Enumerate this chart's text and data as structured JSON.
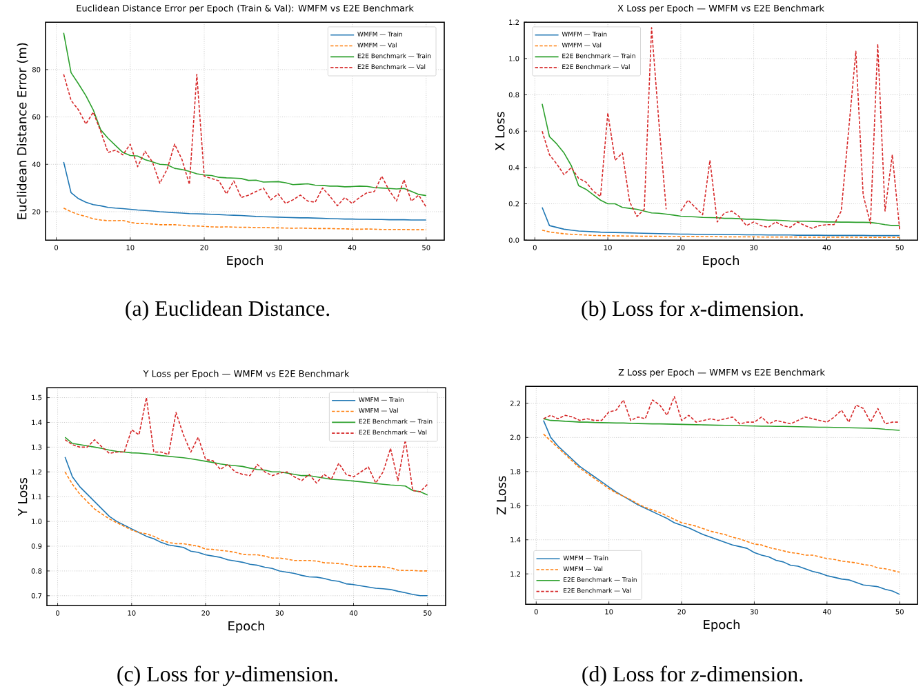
{
  "chart_data": [
    {
      "type": "line",
      "title": "Euclidean Distance Error per Epoch (Train & Val): WMFM vs E2E Benchmark",
      "xlabel": "Epoch",
      "ylabel": "Euclidean Distance Error (m)",
      "annotations": [
        "(a) Euclidean Distance."
      ],
      "xlim": [
        -1.45,
        52.45
      ],
      "ylim": [
        8,
        100
      ],
      "xticks": [
        0,
        10,
        20,
        30,
        40,
        50
      ],
      "yticks": [
        20,
        40,
        60,
        80
      ],
      "grid": true,
      "legend": "top right",
      "marker": "none",
      "x": [
        1,
        2,
        3,
        4,
        5,
        6,
        7,
        8,
        9,
        10,
        11,
        12,
        13,
        14,
        15,
        16,
        17,
        18,
        19,
        20,
        21,
        22,
        23,
        24,
        25,
        26,
        27,
        28,
        29,
        30,
        31,
        32,
        33,
        34,
        35,
        36,
        37,
        38,
        39,
        40,
        41,
        42,
        43,
        44,
        45,
        46,
        47,
        48,
        49,
        50
      ],
      "series": [
        {
          "name": "WMFM — Train",
          "color": "#1f77b4",
          "line_style": "solid",
          "values": [
            41,
            28,
            25.5,
            24,
            23,
            22.5,
            21.8,
            21.5,
            21.3,
            21,
            20.7,
            20.5,
            20.3,
            20,
            19.8,
            19.6,
            19.4,
            19.2,
            19.1,
            19,
            18.9,
            18.8,
            18.6,
            18.5,
            18.4,
            18.2,
            18,
            17.9,
            17.8,
            17.7,
            17.6,
            17.5,
            17.4,
            17.4,
            17.3,
            17.2,
            17.1,
            17,
            16.9,
            16.9,
            16.8,
            16.8,
            16.7,
            16.7,
            16.6,
            16.6,
            16.6,
            16.5,
            16.5,
            16.5
          ]
        },
        {
          "name": "WMFM — Val",
          "color": "#ff7f0e",
          "line_style": "dashed",
          "values": [
            21.5,
            20,
            18.8,
            18,
            17,
            16.5,
            16.2,
            16.2,
            16.3,
            15.5,
            15,
            15,
            14.8,
            14.5,
            14.5,
            14.5,
            14.3,
            14,
            14,
            13.8,
            13.6,
            13.5,
            13.6,
            13.5,
            13.4,
            13.4,
            13.3,
            13.3,
            13.2,
            13.2,
            13.1,
            13,
            13.1,
            13,
            12.9,
            12.9,
            12.9,
            12.8,
            12.8,
            12.6,
            12.6,
            12.7,
            12.6,
            12.5,
            12.5,
            12.5,
            12.5,
            12.4,
            12.4,
            12.4
          ]
        },
        {
          "name": "E2E Benchmark — Train",
          "color": "#2ca02c",
          "line_style": "solid",
          "values": [
            95.5,
            78.7,
            74,
            69,
            63,
            54.6,
            51,
            48,
            45,
            43.7,
            43.5,
            42,
            41,
            40,
            39.8,
            38.3,
            37.8,
            37,
            36,
            35.5,
            35.3,
            34.5,
            34.3,
            34.2,
            34,
            33.2,
            33.3,
            32.5,
            32.6,
            32.7,
            32.2,
            31.4,
            31.6,
            31.8,
            31.2,
            31.1,
            30.8,
            30.8,
            30.5,
            30.6,
            30.8,
            30.7,
            30.2,
            30,
            29.8,
            29.6,
            29.8,
            28.6,
            27.3,
            26.8
          ]
        },
        {
          "name": "E2E Benchmark — Val",
          "color": "#d62728",
          "line_style": "dashed",
          "values": [
            78,
            67,
            63,
            57,
            62,
            54,
            45,
            46,
            44,
            48.5,
            39,
            45.5,
            41,
            32,
            38,
            48.5,
            42,
            31.5,
            78,
            35,
            34,
            33,
            27.5,
            33,
            26,
            27,
            28.5,
            30,
            25,
            27.5,
            23.5,
            25,
            27,
            24.5,
            24,
            30,
            26.5,
            22.5,
            26,
            23.5,
            26,
            28,
            28.5,
            35,
            29,
            24.5,
            33.5,
            24.5,
            27,
            22
          ]
        }
      ]
    },
    {
      "type": "line",
      "title": "X Loss per Epoch — WMFM vs E2E Benchmark",
      "xlabel": "Epoch",
      "ylabel": "X Loss",
      "annotations": [
        "(b) Loss for *x*-dimension."
      ],
      "xlim": [
        -1.45,
        52.45
      ],
      "ylim": [
        0,
        1.2
      ],
      "xticks": [
        0,
        10,
        20,
        30,
        40,
        50
      ],
      "yticks": [
        {
          "value": 0,
          "label": "0.0"
        },
        0.2,
        0.4,
        0.6,
        0.8,
        {
          "value": 1,
          "label": "1.0"
        },
        1.2
      ],
      "grid": true,
      "legend": "top left",
      "marker": "none",
      "x": [
        1,
        2,
        3,
        4,
        5,
        6,
        7,
        8,
        9,
        10,
        11,
        12,
        13,
        14,
        15,
        16,
        17,
        18,
        19,
        20,
        21,
        22,
        23,
        24,
        25,
        26,
        27,
        28,
        29,
        30,
        31,
        32,
        33,
        34,
        35,
        36,
        37,
        38,
        39,
        40,
        41,
        42,
        43,
        44,
        45,
        46,
        47,
        48,
        49,
        50
      ],
      "series": [
        {
          "name": "WMFM — Train",
          "color": "#1f77b4",
          "line_style": "solid",
          "values": [
            0.18,
            0.08,
            0.07,
            0.06,
            0.055,
            0.05,
            0.048,
            0.046,
            0.044,
            0.043,
            0.042,
            0.041,
            0.04,
            0.039,
            0.038,
            0.037,
            0.036,
            0.035,
            0.034,
            0.033,
            0.033,
            0.032,
            0.032,
            0.031,
            0.031,
            0.03,
            0.03,
            0.03,
            0.029,
            0.029,
            0.029,
            0.028,
            0.028,
            0.028,
            0.028,
            0.027,
            0.027,
            0.027,
            0.027,
            0.026,
            0.026,
            0.026,
            0.026,
            0.026,
            0.026,
            0.025,
            0.025,
            0.025,
            0.025,
            0.025
          ]
        },
        {
          "name": "WMFM — Val",
          "color": "#ff7f0e",
          "line_style": "dashed",
          "values": [
            0.055,
            0.045,
            0.04,
            0.035,
            0.032,
            0.03,
            0.028,
            0.026,
            0.025,
            0.024,
            0.023,
            0.023,
            0.022,
            0.022,
            0.021,
            0.021,
            0.021,
            0.02,
            0.02,
            0.02,
            0.02,
            0.019,
            0.019,
            0.019,
            0.019,
            0.018,
            0.018,
            0.018,
            0.018,
            0.018,
            0.017,
            0.017,
            0.017,
            0.017,
            0.017,
            0.017,
            0.016,
            0.016,
            0.016,
            0.016,
            0.016,
            0.016,
            0.016,
            0.016,
            0.015,
            0.015,
            0.015,
            0.015,
            0.015,
            0.015
          ]
        },
        {
          "name": "E2E Benchmark — Train",
          "color": "#2ca02c",
          "line_style": "solid",
          "values": [
            0.75,
            0.57,
            0.53,
            0.48,
            0.41,
            0.3,
            0.28,
            0.25,
            0.22,
            0.2,
            0.2,
            0.18,
            0.175,
            0.17,
            0.16,
            0.15,
            0.148,
            0.143,
            0.138,
            0.132,
            0.13,
            0.128,
            0.125,
            0.124,
            0.123,
            0.12,
            0.12,
            0.118,
            0.115,
            0.115,
            0.113,
            0.11,
            0.11,
            0.108,
            0.105,
            0.104,
            0.104,
            0.103,
            0.102,
            0.1,
            0.1,
            0.099,
            0.099,
            0.098,
            0.098,
            0.097,
            0.092,
            0.085,
            0.08,
            0.08
          ]
        },
        {
          "name": "E2E Benchmark — Val",
          "color": "#d62728",
          "line_style": "dashed",
          "values": [
            0.6,
            0.47,
            0.42,
            0.36,
            0.4,
            0.34,
            0.32,
            0.27,
            0.24,
            0.7,
            0.44,
            0.48,
            0.21,
            0.13,
            0.17,
            1.17,
            0.65,
            0.17,
            null,
            0.16,
            0.22,
            0.18,
            0.14,
            0.44,
            0.1,
            0.15,
            0.16,
            0.13,
            0.08,
            0.1,
            0.08,
            0.07,
            0.1,
            0.08,
            0.07,
            0.1,
            0.08,
            0.065,
            0.08,
            0.085,
            0.085,
            0.16,
            0.6,
            1.04,
            0.25,
            0.09,
            1.08,
            0.16,
            0.47,
            0.06
          ]
        }
      ]
    },
    {
      "type": "line",
      "title": "Y Loss per Epoch — WMFM vs E2E Benchmark",
      "xlabel": "Epoch",
      "ylabel": "Y Loss",
      "annotations": [
        "(c) Loss for *y*-dimension."
      ],
      "xlim": [
        -1.45,
        52.45
      ],
      "ylim": [
        0.66,
        1.54
      ],
      "xticks": [
        0,
        10,
        20,
        30,
        40,
        50
      ],
      "yticks": [
        0.7,
        0.8,
        0.9,
        {
          "value": 1,
          "label": "1.0"
        },
        1.1,
        1.2,
        1.3,
        1.4,
        1.5
      ],
      "grid": true,
      "legend": "top right",
      "marker": "none",
      "x": [
        1,
        2,
        3,
        4,
        5,
        6,
        7,
        8,
        9,
        10,
        11,
        12,
        13,
        14,
        15,
        16,
        17,
        18,
        19,
        20,
        21,
        22,
        23,
        24,
        25,
        26,
        27,
        28,
        29,
        30,
        31,
        32,
        33,
        34,
        35,
        36,
        37,
        38,
        39,
        40,
        41,
        42,
        43,
        44,
        45,
        46,
        47,
        48,
        49,
        50
      ],
      "series": [
        {
          "name": "WMFM — Train",
          "color": "#1f77b4",
          "line_style": "solid",
          "values": [
            1.26,
            1.18,
            1.14,
            1.11,
            1.08,
            1.05,
            1.02,
            1.0,
            0.985,
            0.97,
            0.955,
            0.94,
            0.93,
            0.915,
            0.905,
            0.9,
            0.895,
            0.88,
            0.875,
            0.865,
            0.86,
            0.855,
            0.845,
            0.84,
            0.835,
            0.827,
            0.823,
            0.815,
            0.81,
            0.8,
            0.795,
            0.79,
            0.782,
            0.776,
            0.775,
            0.77,
            0.762,
            0.758,
            0.748,
            0.745,
            0.74,
            0.735,
            0.73,
            0.728,
            0.725,
            0.718,
            0.712,
            0.705,
            0.7,
            0.7
          ]
        },
        {
          "name": "WMFM — Val",
          "color": "#ff7f0e",
          "line_style": "dashed",
          "values": [
            1.2,
            1.15,
            1.11,
            1.08,
            1.05,
            1.03,
            1.01,
            0.995,
            0.98,
            0.965,
            0.955,
            0.95,
            0.94,
            0.925,
            0.915,
            0.91,
            0.91,
            0.905,
            0.9,
            0.888,
            0.887,
            0.883,
            0.88,
            0.875,
            0.867,
            0.865,
            0.865,
            0.86,
            0.852,
            0.852,
            0.848,
            0.842,
            0.842,
            0.842,
            0.84,
            0.833,
            0.832,
            0.83,
            0.826,
            0.82,
            0.818,
            0.818,
            0.818,
            0.816,
            0.812,
            0.803,
            0.802,
            0.802,
            0.8,
            0.8
          ]
        },
        {
          "name": "E2E Benchmark — Train",
          "color": "#2ca02c",
          "line_style": "solid",
          "values": [
            1.34,
            1.315,
            1.31,
            1.305,
            1.3,
            1.295,
            1.288,
            1.283,
            1.28,
            1.277,
            1.276,
            1.273,
            1.27,
            1.266,
            1.263,
            1.26,
            1.257,
            1.253,
            1.248,
            1.243,
            1.238,
            1.232,
            1.228,
            1.225,
            1.222,
            1.215,
            1.21,
            1.207,
            1.2,
            1.2,
            1.195,
            1.19,
            1.185,
            1.185,
            1.18,
            1.175,
            1.17,
            1.168,
            1.166,
            1.163,
            1.16,
            1.157,
            1.153,
            1.15,
            1.147,
            1.145,
            1.143,
            1.125,
            1.12,
            1.107
          ]
        },
        {
          "name": "E2E Benchmark — Val",
          "color": "#d62728",
          "line_style": "dashed",
          "values": [
            1.33,
            1.31,
            1.3,
            1.3,
            1.33,
            1.3,
            1.275,
            1.28,
            1.28,
            1.37,
            1.35,
            1.5,
            1.28,
            1.28,
            1.27,
            1.44,
            1.35,
            1.28,
            1.34,
            1.25,
            1.245,
            1.21,
            1.23,
            1.2,
            1.19,
            1.185,
            1.23,
            1.2,
            1.185,
            1.195,
            1.2,
            1.18,
            1.165,
            1.19,
            1.155,
            1.19,
            1.17,
            1.235,
            1.19,
            1.18,
            1.2,
            1.22,
            1.155,
            1.2,
            1.295,
            1.165,
            1.33,
            1.125,
            1.12,
            1.15
          ]
        }
      ]
    },
    {
      "type": "line",
      "title": "Z Loss per Epoch — WMFM vs E2E Benchmark",
      "xlabel": "Epoch",
      "ylabel": "Z Loss",
      "annotations": [
        "(d) Loss for *z*-dimension."
      ],
      "xlim": [
        -1.45,
        52.45
      ],
      "ylim": [
        1.022,
        2.3
      ],
      "xticks": [
        0,
        10,
        20,
        30,
        40,
        50
      ],
      "yticks": [
        1.2,
        1.4,
        1.6,
        1.8,
        {
          "value": 2,
          "label": "2.0"
        },
        2.2
      ],
      "grid": true,
      "legend": "bottom left",
      "marker": "none",
      "x": [
        1,
        2,
        3,
        4,
        5,
        6,
        7,
        8,
        9,
        10,
        11,
        12,
        13,
        14,
        15,
        16,
        17,
        18,
        19,
        20,
        21,
        22,
        23,
        24,
        25,
        26,
        27,
        28,
        29,
        30,
        31,
        32,
        33,
        34,
        35,
        36,
        37,
        38,
        39,
        40,
        41,
        42,
        43,
        44,
        45,
        46,
        47,
        48,
        49,
        50
      ],
      "series": [
        {
          "name": "WMFM — Train",
          "color": "#1f77b4",
          "line_style": "solid",
          "values": [
            2.1,
            2.0,
            1.95,
            1.91,
            1.87,
            1.83,
            1.8,
            1.77,
            1.74,
            1.71,
            1.68,
            1.655,
            1.63,
            1.605,
            1.585,
            1.565,
            1.545,
            1.525,
            1.5,
            1.485,
            1.47,
            1.45,
            1.43,
            1.415,
            1.4,
            1.385,
            1.37,
            1.36,
            1.35,
            1.325,
            1.31,
            1.3,
            1.28,
            1.27,
            1.25,
            1.245,
            1.23,
            1.215,
            1.205,
            1.19,
            1.18,
            1.17,
            1.165,
            1.15,
            1.135,
            1.13,
            1.125,
            1.11,
            1.1,
            1.08
          ]
        },
        {
          "name": "WMFM — Val",
          "color": "#ff7f0e",
          "line_style": "dashed",
          "values": [
            2.02,
            1.98,
            1.94,
            1.9,
            1.86,
            1.82,
            1.79,
            1.76,
            1.73,
            1.7,
            1.675,
            1.655,
            1.635,
            1.61,
            1.59,
            1.575,
            1.56,
            1.54,
            1.52,
            1.5,
            1.49,
            1.48,
            1.465,
            1.45,
            1.44,
            1.43,
            1.415,
            1.405,
            1.39,
            1.375,
            1.37,
            1.355,
            1.345,
            1.335,
            1.325,
            1.32,
            1.31,
            1.31,
            1.3,
            1.29,
            1.285,
            1.275,
            1.27,
            1.265,
            1.255,
            1.25,
            1.235,
            1.23,
            1.22,
            1.21
          ]
        },
        {
          "name": "E2E Benchmark — Train",
          "color": "#2ca02c",
          "line_style": "solid",
          "values": [
            2.11,
            2.1,
            2.098,
            2.095,
            2.093,
            2.09,
            2.09,
            2.088,
            2.087,
            2.086,
            2.085,
            2.085,
            2.083,
            2.082,
            2.081,
            2.08,
            2.08,
            2.079,
            2.078,
            2.077,
            2.076,
            2.075,
            2.074,
            2.073,
            2.072,
            2.071,
            2.07,
            2.069,
            2.068,
            2.067,
            2.066,
            2.066,
            2.065,
            2.065,
            2.064,
            2.063,
            2.062,
            2.061,
            2.06,
            2.06,
            2.059,
            2.058,
            2.057,
            2.056,
            2.055,
            2.054,
            2.052,
            2.048,
            2.045,
            2.042
          ]
        },
        {
          "name": "E2E Benchmark — Val",
          "color": "#d62728",
          "line_style": "dashed",
          "values": [
            2.11,
            2.13,
            2.11,
            2.13,
            2.12,
            2.1,
            2.11,
            2.1,
            2.1,
            2.15,
            2.16,
            2.22,
            2.1,
            2.12,
            2.11,
            2.22,
            2.19,
            2.13,
            2.24,
            2.1,
            2.13,
            2.09,
            2.1,
            2.11,
            2.1,
            2.11,
            2.12,
            2.08,
            2.09,
            2.09,
            2.12,
            2.08,
            2.1,
            2.09,
            2.08,
            2.1,
            2.12,
            2.11,
            2.1,
            2.09,
            2.12,
            2.16,
            2.09,
            2.19,
            2.17,
            2.09,
            2.17,
            2.08,
            2.09,
            2.09
          ]
        }
      ]
    }
  ]
}
